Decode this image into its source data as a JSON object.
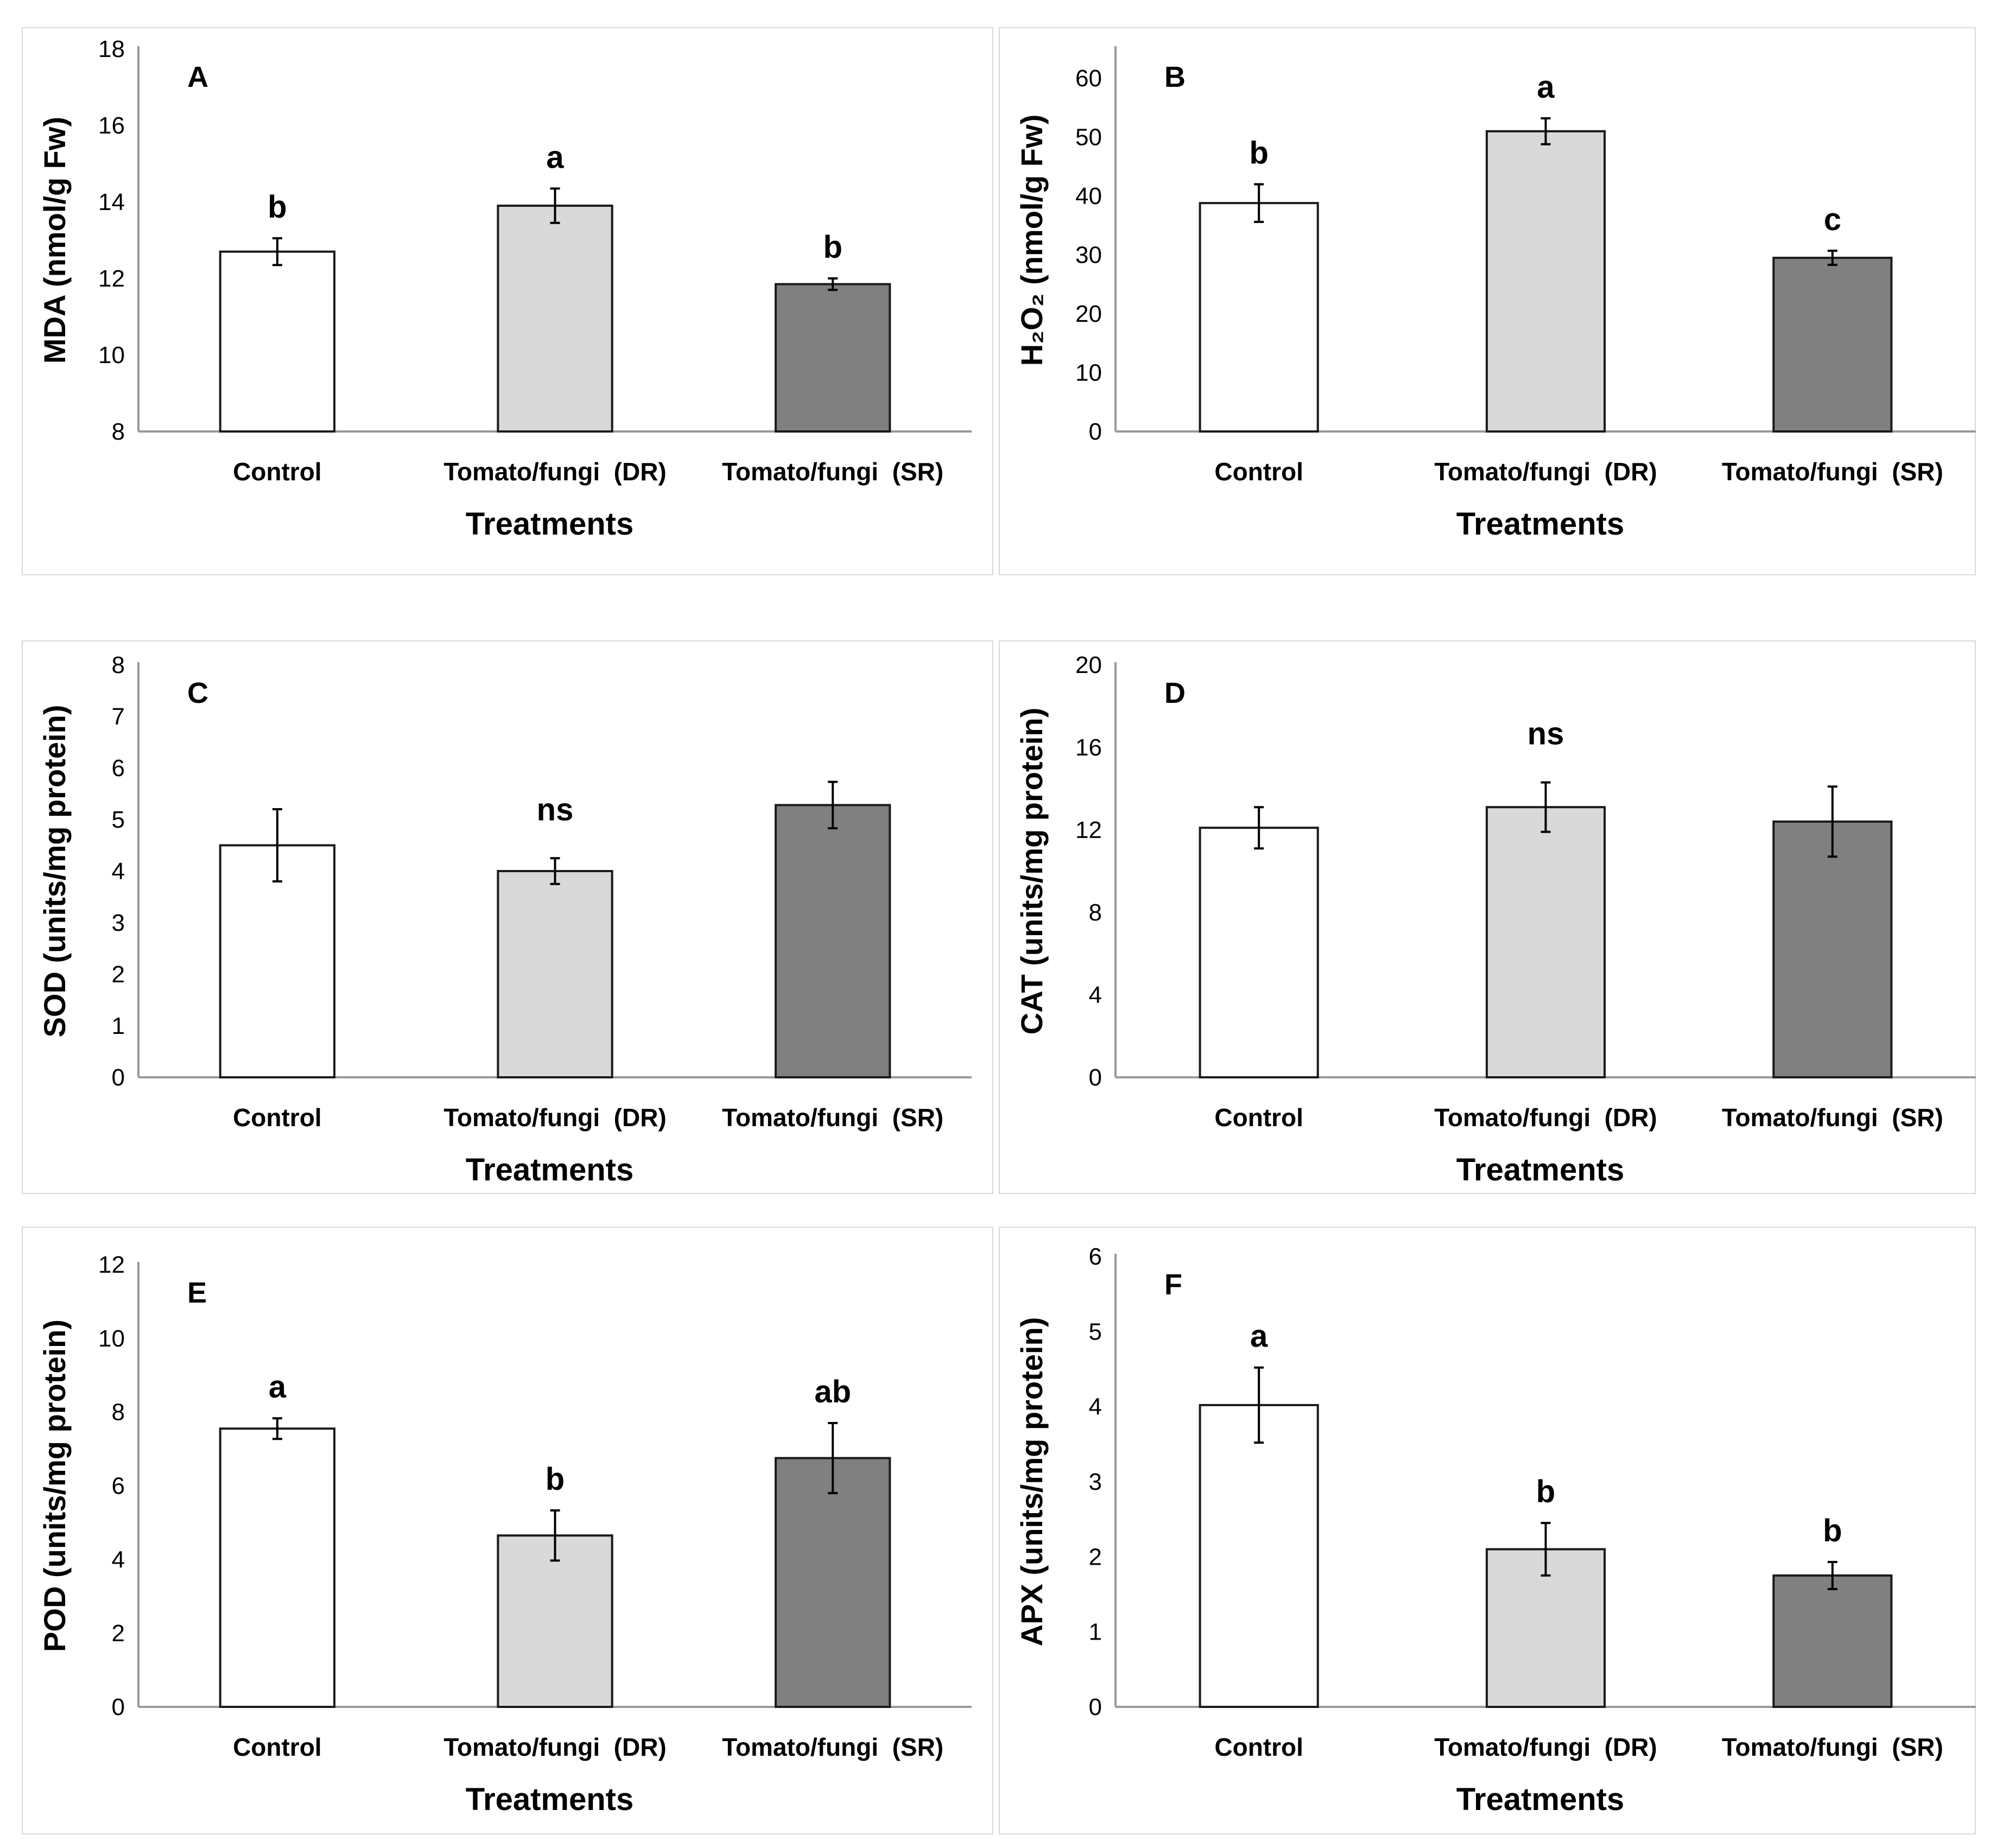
{
  "colors": {
    "Control": "#ffffff",
    "Tomato/fungi  (DR)": "#d9d9d9",
    "Tomato/fungi  (SR)": "#808080",
    "bar_outline": "#1a1a1a",
    "axis": "#999999"
  },
  "chart_data": [
    {
      "type": "bar",
      "panel": "A",
      "title": "",
      "ylabel": "MDA (nmol/g Fw)",
      "xlabel": "Treatments",
      "categories": [
        "Control",
        "Tomato/fungi  (DR)",
        "Tomato/fungi  (SR)"
      ],
      "values": [
        12.7,
        13.9,
        11.85
      ],
      "errors": [
        0.35,
        0.45,
        0.15
      ],
      "letters": [
        "b",
        "a",
        "b"
      ],
      "ylim": [
        8,
        18
      ],
      "yticks": [
        8,
        10,
        12,
        14,
        16,
        18
      ],
      "grid": false
    },
    {
      "type": "bar",
      "panel": "B",
      "title": "",
      "ylabel": "H₂O₂ (nmol/g Fw)",
      "xlabel": "Treatments",
      "categories": [
        "Control",
        "Tomato/fungi  (DR)",
        "Tomato/fungi  (SR)"
      ],
      "values": [
        38.8,
        51.0,
        29.5
      ],
      "errors": [
        3.2,
        2.2,
        1.2
      ],
      "letters": [
        "b",
        "a",
        "c"
      ],
      "ylim": [
        0,
        65
      ],
      "yticks": [
        0,
        10,
        20,
        30,
        40,
        50,
        60
      ],
      "grid": false
    },
    {
      "type": "bar",
      "panel": "C",
      "title": "",
      "ylabel": "SOD (units/mg protein)",
      "xlabel": "Treatments",
      "categories": [
        "Control",
        "Tomato/fungi  (DR)",
        "Tomato/fungi  (SR)"
      ],
      "values": [
        4.5,
        4.0,
        5.28
      ],
      "errors": [
        0.7,
        0.25,
        0.45
      ],
      "letters": [],
      "significance": "ns",
      "ylim": [
        0,
        8
      ],
      "yticks": [
        0,
        1,
        2,
        3,
        4,
        5,
        6,
        7,
        8
      ],
      "grid": false
    },
    {
      "type": "bar",
      "panel": "D",
      "title": "",
      "ylabel": "CAT (units/mg protein)",
      "xlabel": "Treatments",
      "categories": [
        "Control",
        "Tomato/fungi  (DR)",
        "Tomato/fungi  (SR)"
      ],
      "values": [
        12.1,
        13.1,
        12.4
      ],
      "errors": [
        1.0,
        1.2,
        1.7
      ],
      "letters": [],
      "significance": "ns",
      "ylim": [
        0,
        20
      ],
      "yticks": [
        0,
        4,
        8,
        12,
        16,
        20
      ],
      "grid": false
    },
    {
      "type": "bar",
      "panel": "E",
      "title": "",
      "ylabel": "POD (units/mg protein)",
      "xlabel": "Treatments",
      "categories": [
        "Control",
        "Tomato/fungi  (DR)",
        "Tomato/fungi  (SR)"
      ],
      "values": [
        7.55,
        4.65,
        6.75
      ],
      "errors": [
        0.28,
        0.68,
        0.95
      ],
      "letters": [
        "a",
        "b",
        "ab"
      ],
      "ylim": [
        0,
        12
      ],
      "yticks": [
        0,
        2,
        4,
        6,
        8,
        10,
        12
      ],
      "grid": false
    },
    {
      "type": "bar",
      "panel": "F",
      "title": "",
      "ylabel": "APX (units/mg protein)",
      "xlabel": "Treatments",
      "categories": [
        "Control",
        "Tomato/fungi  (DR)",
        "Tomato/fungi  (SR)"
      ],
      "values": [
        4.02,
        2.1,
        1.75
      ],
      "errors": [
        0.5,
        0.35,
        0.18
      ],
      "letters": [
        "a",
        "b",
        "b"
      ],
      "ylim": [
        0,
        6
      ],
      "yticks": [
        0,
        1,
        2,
        3,
        4,
        5,
        6
      ],
      "grid": false
    }
  ]
}
